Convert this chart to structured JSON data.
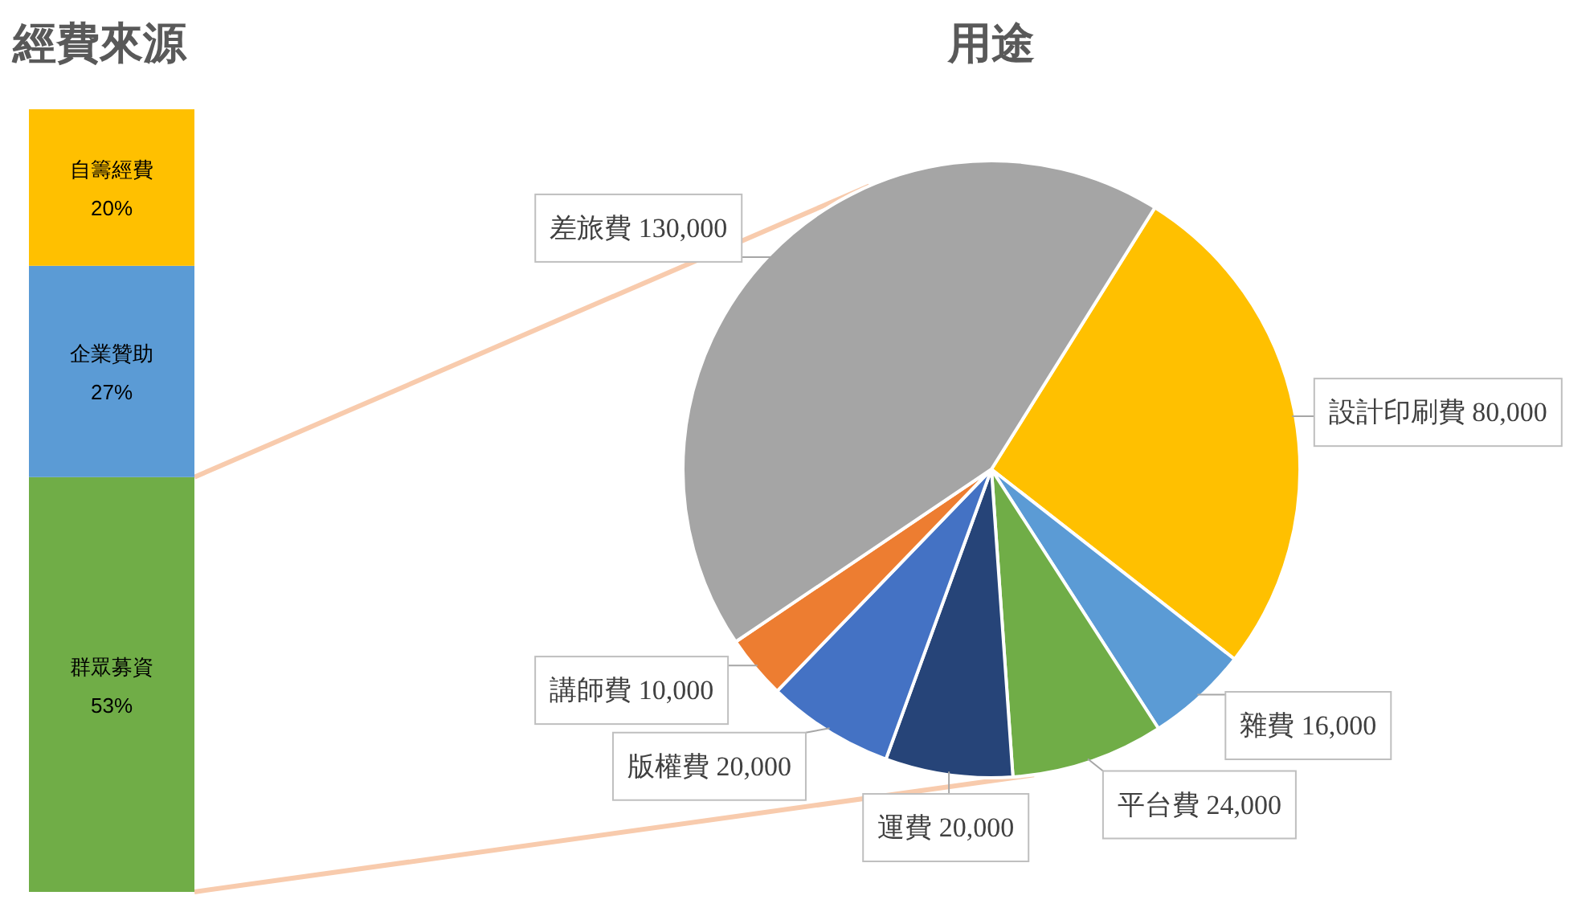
{
  "chart_data": [
    {
      "type": "bar",
      "title": "經費來源",
      "stacked": true,
      "categories": [
        null
      ],
      "series": [
        {
          "name": "群眾募資",
          "color": "#70ad47",
          "values": [
            53
          ],
          "value_labels": [
            "53%"
          ]
        },
        {
          "name": "企業贊助",
          "color": "#5b9bd5",
          "values": [
            27
          ],
          "value_labels": [
            "27%"
          ]
        },
        {
          "name": "自籌經費",
          "color": "#ffc000",
          "values": [
            20
          ],
          "value_labels": [
            "20%"
          ]
        }
      ]
    },
    {
      "type": "pie",
      "title": "用途",
      "categories": [
        "設計印刷費",
        "雜費",
        "平台費",
        "運費",
        "版權費",
        "講師費",
        "差旅費"
      ],
      "values": [
        80000,
        16000,
        24000,
        20000,
        20000,
        10000,
        130000
      ],
      "colors": [
        "#ffc000",
        "#5b9bd5",
        "#70ad47",
        "#264478",
        "#4472c4",
        "#ed7d31",
        "#a5a5a5"
      ],
      "value_labels": [
        "80,000",
        "16,000",
        "24,000",
        "20,000",
        "20,000",
        "10,000",
        "130,000"
      ]
    }
  ]
}
